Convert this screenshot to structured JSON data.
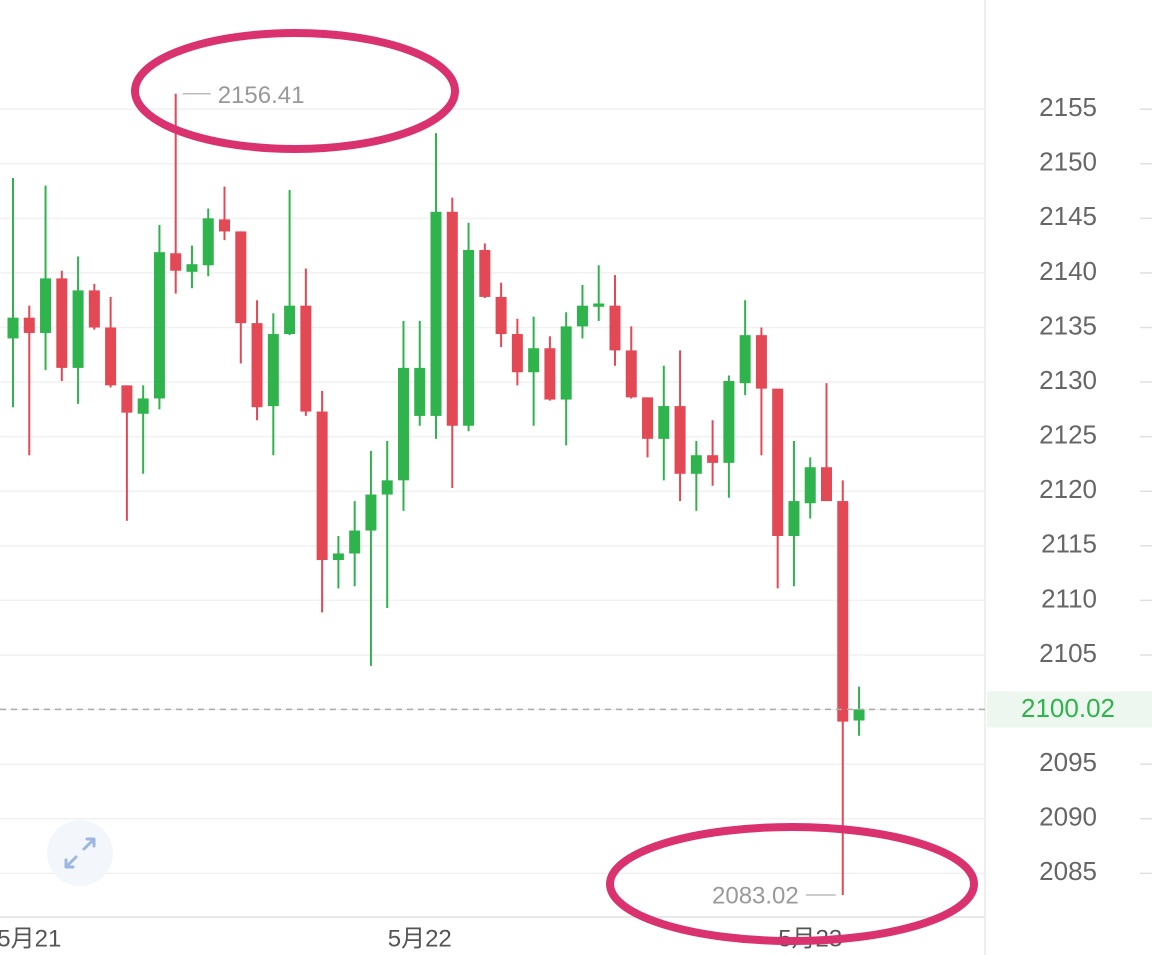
{
  "chart_data": {
    "type": "candlestick",
    "categories": [
      null,
      "5月21",
      null,
      null,
      null,
      null,
      null,
      null,
      null,
      null,
      null,
      null,
      null,
      null,
      null,
      null,
      null,
      null,
      null,
      null,
      null,
      null,
      null,
      null,
      null,
      "5月22",
      null,
      null,
      null,
      null,
      null,
      null,
      null,
      null,
      null,
      null,
      null,
      null,
      null,
      null,
      null,
      null,
      null,
      null,
      null,
      null,
      null,
      null,
      null,
      "5月23",
      null,
      null,
      null
    ],
    "open": [
      2134.0,
      2135.9,
      2134.5,
      2139.5,
      2131.3,
      2138.4,
      2135.0,
      2129.7,
      2127.1,
      2128.5,
      2141.8,
      2140.1,
      2140.7,
      2144.9,
      2143.8,
      2135.4,
      2127.8,
      2134.4,
      2137.0,
      2127.3,
      2113.7,
      2114.3,
      2116.4,
      2119.7,
      2121.0,
      2126.9,
      2126.9,
      2145.6,
      2126.0,
      2142.1,
      2137.8,
      2134.4,
      2130.9,
      2133.1,
      2128.4,
      2135.1,
      2136.9,
      2137.0,
      2132.9,
      2128.6,
      2124.8,
      2127.8,
      2121.6,
      2123.3,
      2122.6,
      2129.9,
      2134.3,
      2129.4,
      2115.9,
      2118.9,
      2122.2,
      2119.1,
      2099.0
    ],
    "high": [
      2148.7,
      2137.0,
      2148.0,
      2140.2,
      2141.5,
      2139.0,
      2137.8,
      2129.7,
      2129.7,
      2144.4,
      2156.41,
      2142.5,
      2145.9,
      2147.9,
      2143.8,
      2137.5,
      2136.3,
      2147.6,
      2140.4,
      2129.2,
      2115.9,
      2119.1,
      2123.7,
      2124.6,
      2135.6,
      2135.6,
      2152.8,
      2146.9,
      2144.6,
      2142.7,
      2139.1,
      2135.8,
      2136.0,
      2134.2,
      2136.4,
      2138.9,
      2140.7,
      2139.8,
      2135.1,
      2128.6,
      2131.5,
      2132.9,
      2124.6,
      2126.5,
      2130.6,
      2137.5,
      2135.0,
      2129.4,
      2124.6,
      2123.1,
      2129.9,
      2121.0,
      2102.1
    ],
    "low": [
      2127.7,
      2123.3,
      2131.1,
      2130.1,
      2128.0,
      2134.8,
      2129.5,
      2117.3,
      2121.6,
      2127.5,
      2138.1,
      2138.6,
      2139.7,
      2143.0,
      2131.7,
      2126.5,
      2123.3,
      2134.3,
      2126.9,
      2108.9,
      2111.1,
      2111.3,
      2104.0,
      2109.3,
      2118.2,
      2126.0,
      2124.8,
      2120.3,
      2125.5,
      2137.7,
      2133.2,
      2129.7,
      2126.0,
      2128.3,
      2124.2,
      2134.0,
      2135.6,
      2131.5,
      2128.5,
      2123.1,
      2121.0,
      2119.1,
      2118.2,
      2120.5,
      2119.4,
      2128.8,
      2123.3,
      2111.1,
      2111.3,
      2117.5,
      2119.1,
      2083.02,
      2097.6
    ],
    "close": [
      2135.9,
      2134.5,
      2139.5,
      2131.3,
      2138.4,
      2135.0,
      2129.7,
      2127.2,
      2128.5,
      2141.9,
      2140.2,
      2140.8,
      2145.0,
      2143.8,
      2135.4,
      2127.7,
      2134.4,
      2137.0,
      2127.3,
      2113.7,
      2114.3,
      2116.4,
      2119.7,
      2121.0,
      2131.3,
      2131.3,
      2145.6,
      2126.0,
      2142.1,
      2137.8,
      2134.4,
      2130.9,
      2133.1,
      2128.4,
      2135.1,
      2137.0,
      2137.2,
      2132.9,
      2128.6,
      2124.8,
      2127.8,
      2121.6,
      2123.3,
      2122.6,
      2130.1,
      2134.3,
      2129.4,
      2115.9,
      2119.1,
      2122.2,
      2119.1,
      2098.9,
      2100.02
    ],
    "up_color": "#2fb34c",
    "down_color": "#e34855",
    "ylim": [
      2081,
      2165
    ],
    "yticks": [
      2085,
      2090,
      2095,
      2100,
      2105,
      2110,
      2115,
      2120,
      2125,
      2130,
      2135,
      2140,
      2145,
      2150,
      2155
    ],
    "grid": true
  }
}
